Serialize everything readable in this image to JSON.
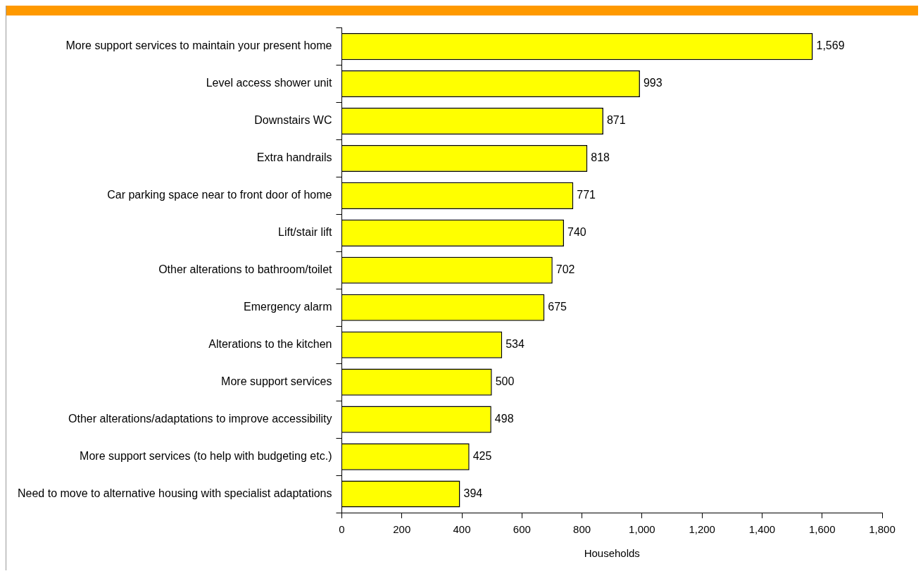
{
  "chart_data": {
    "type": "bar",
    "orientation": "horizontal",
    "xlabel": "Households",
    "categories": [
      "More support services to maintain your present home",
      "Level access shower unit",
      "Downstairs WC",
      "Extra handrails",
      "Car parking space near to front door of home",
      "Lift/stair lift",
      "Other alterations to bathroom/toilet",
      "Emergency alarm",
      "Alterations to the kitchen",
      "More support services",
      "Other alterations/adaptations to improve accessibility",
      "More support services (to help with budgeting etc.)",
      "Need to move to alternative housing with specialist adaptations"
    ],
    "values": [
      1569,
      993,
      871,
      818,
      771,
      740,
      702,
      675,
      534,
      500,
      498,
      425,
      394
    ],
    "value_labels": [
      "1,569",
      "993",
      "871",
      "818",
      "771",
      "740",
      "702",
      "675",
      "534",
      "500",
      "498",
      "425",
      "394"
    ],
    "color": "#ffff00",
    "xlim": [
      0,
      1800
    ],
    "xticks": [
      0,
      200,
      400,
      600,
      800,
      {
        "value": 1000,
        "label": "1,000"
      },
      {
        "value": 1200,
        "label": "1,200"
      },
      {
        "value": 1400,
        "label": "1,400"
      },
      {
        "value": 1600,
        "label": "1,600"
      },
      {
        "value": 1800,
        "label": "1,800"
      }
    ],
    "grid": false,
    "legend": false
  }
}
